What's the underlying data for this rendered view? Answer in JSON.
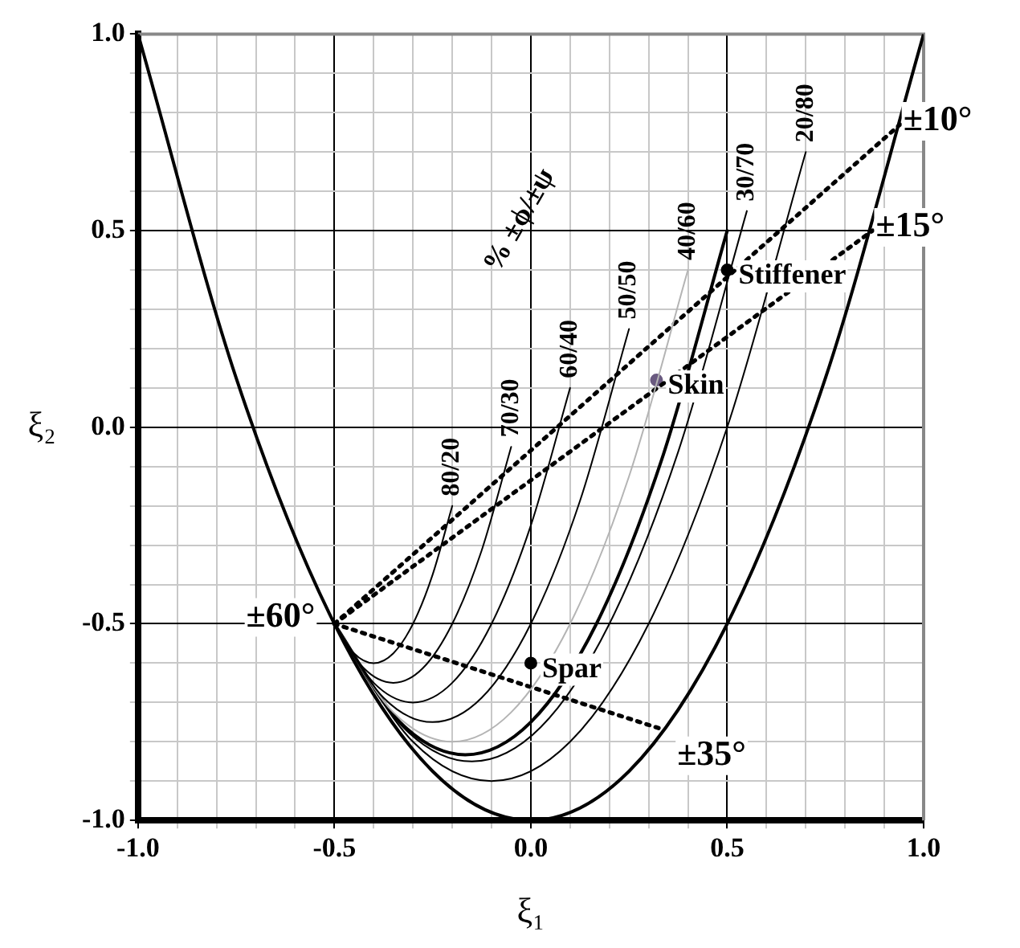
{
  "chart_data": {
    "type": "line",
    "xlabel": "ξ₁",
    "ylabel": "ξ₂",
    "xlim": [
      -1,
      1
    ],
    "ylim": [
      -1,
      1
    ],
    "xticks": [
      {
        "value": -1,
        "label": "-1.0"
      },
      {
        "value": -0.9,
        "label": null
      },
      {
        "value": -0.8,
        "label": null
      },
      {
        "value": -0.7,
        "label": null
      },
      {
        "value": -0.6,
        "label": null
      },
      {
        "value": -0.5,
        "label": "-0.5"
      },
      {
        "value": -0.4,
        "label": null
      },
      {
        "value": -0.3,
        "label": null
      },
      {
        "value": -0.2,
        "label": null
      },
      {
        "value": -0.1,
        "label": null
      },
      {
        "value": 0,
        "label": "0.0"
      },
      {
        "value": 0.1,
        "label": null
      },
      {
        "value": 0.2,
        "label": null
      },
      {
        "value": 0.3,
        "label": null
      },
      {
        "value": 0.4,
        "label": null
      },
      {
        "value": 0.5,
        "label": "0.5"
      },
      {
        "value": 0.6,
        "label": null
      },
      {
        "value": 0.7,
        "label": null
      },
      {
        "value": 0.8,
        "label": null
      },
      {
        "value": 0.9,
        "label": null
      },
      {
        "value": 1,
        "label": "1.0"
      }
    ],
    "yticks": [
      {
        "value": -1,
        "label": "-1.0"
      },
      {
        "value": -0.9,
        "label": null
      },
      {
        "value": -0.8,
        "label": null
      },
      {
        "value": -0.7,
        "label": null
      },
      {
        "value": -0.6,
        "label": null
      },
      {
        "value": -0.5,
        "label": "-0.5"
      },
      {
        "value": -0.4,
        "label": null
      },
      {
        "value": -0.3,
        "label": null
      },
      {
        "value": -0.2,
        "label": null
      },
      {
        "value": -0.1,
        "label": null
      },
      {
        "value": 0,
        "label": "0.0"
      },
      {
        "value": 0.1,
        "label": null
      },
      {
        "value": 0.2,
        "label": null
      },
      {
        "value": 0.3,
        "label": null
      },
      {
        "value": 0.4,
        "label": null
      },
      {
        "value": 0.5,
        "label": "0.5"
      },
      {
        "value": 0.6,
        "label": null
      },
      {
        "value": 0.7,
        "label": null
      },
      {
        "value": 0.8,
        "label": null
      },
      {
        "value": 0.9,
        "label": null
      },
      {
        "value": 1,
        "label": "1.0"
      }
    ],
    "grid": true,
    "legend": false,
    "marker": "none",
    "line_style": "solid",
    "series": [
      {
        "color": "#000000",
        "x": [
          -1,
          -0.75,
          -0.5,
          -0.25,
          0,
          0.25,
          0.5,
          0.75,
          1
        ],
        "values": [
          1,
          0.125,
          -0.5,
          -0.875,
          -1,
          -0.875,
          -0.5,
          0.125,
          1
        ]
      },
      {
        "name": "80/20",
        "color": "#000000",
        "x": [
          -0.5,
          -0.45,
          -0.4,
          -0.35,
          -0.3,
          -0.25,
          -0.2
        ],
        "values": [
          -0.5,
          -0.575,
          -0.6,
          -0.575,
          -0.5,
          -0.375,
          -0.2
        ]
      },
      {
        "name": "70/30",
        "color": "#000000",
        "x": [
          -0.5,
          -0.425,
          -0.35,
          -0.275,
          -0.2,
          -0.125,
          -0.05
        ],
        "values": [
          -0.5,
          -0.613,
          -0.65,
          -0.613,
          -0.5,
          -0.313,
          -0.05
        ]
      },
      {
        "name": "60/40",
        "color": "#000000",
        "x": [
          -0.5,
          -0.4,
          -0.3,
          -0.2,
          -0.1,
          0,
          0.1
        ],
        "values": [
          -0.5,
          -0.65,
          -0.7,
          -0.65,
          -0.5,
          -0.25,
          0.1
        ]
      },
      {
        "name": "50/50",
        "color": "#000000",
        "x": [
          -0.5,
          -0.375,
          -0.25,
          -0.125,
          0,
          0.125,
          0.25
        ],
        "values": [
          -0.5,
          -0.688,
          -0.75,
          -0.688,
          -0.5,
          -0.188,
          0.25
        ]
      },
      {
        "name": "40/60",
        "color": "#b4b4b4",
        "x": [
          -0.5,
          -0.35,
          -0.2,
          -0.05,
          0.1,
          0.25,
          0.4
        ],
        "values": [
          -0.5,
          -0.725,
          -0.8,
          -0.725,
          -0.5,
          -0.125,
          0.4
        ]
      },
      {
        "color": "#000000",
        "x": [
          -0.5,
          -0.333,
          -0.167,
          0,
          0.167,
          0.333,
          0.5
        ],
        "values": [
          -0.5,
          -0.75,
          -0.833,
          -0.75,
          -0.5,
          -0.083,
          0.5
        ]
      },
      {
        "name": "30/70",
        "color": "#000000",
        "x": [
          -0.5,
          -0.325,
          -0.15,
          0.025,
          0.2,
          0.375,
          0.55
        ],
        "values": [
          -0.5,
          -0.763,
          -0.85,
          -0.763,
          -0.5,
          -0.063,
          0.55
        ]
      },
      {
        "name": "20/80",
        "color": "#000000",
        "x": [
          -0.5,
          -0.3,
          -0.1,
          0.1,
          0.3,
          0.5,
          0.7
        ],
        "values": [
          -0.5,
          -0.8,
          -0.9,
          -0.8,
          -0.5,
          0,
          0.7
        ]
      },
      {
        "line_style": "dotted",
        "color": "#000000",
        "x": [
          -0.5,
          0.94
        ],
        "values": [
          -0.5,
          0.77
        ]
      },
      {
        "line_style": "dotted",
        "color": "#000000",
        "x": [
          -0.5,
          0.87
        ],
        "values": [
          -0.5,
          0.5
        ]
      },
      {
        "line_style": "dotted",
        "color": "#000000",
        "x": [
          -0.5,
          0.34
        ],
        "values": [
          -0.5,
          -0.77
        ]
      },
      {
        "type": "scatter",
        "marker": "circle",
        "name": "Stiffener",
        "color": "#000000",
        "x": [
          0.5
        ],
        "values": [
          0.4
        ]
      },
      {
        "type": "scatter",
        "marker": "circle",
        "name": "Skin",
        "color": "#6a5a80",
        "x": [
          0.32
        ],
        "values": [
          0.12
        ]
      },
      {
        "type": "scatter",
        "marker": "circle",
        "name": "Spar",
        "color": "#000000",
        "x": [
          0
        ],
        "values": [
          -0.6
        ]
      }
    ],
    "annotations": [
      "% ±ϕ/±ψ",
      {
        "text": "±10°",
        "x": 0.94,
        "y": 0.77
      },
      {
        "text": "±15°",
        "x": 0.87,
        "y": 0.5
      },
      {
        "text": "±35°",
        "x": 0.34,
        "y": -0.77
      },
      {
        "text": "±60°",
        "x": -0.5,
        "y": -0.5
      }
    ]
  }
}
